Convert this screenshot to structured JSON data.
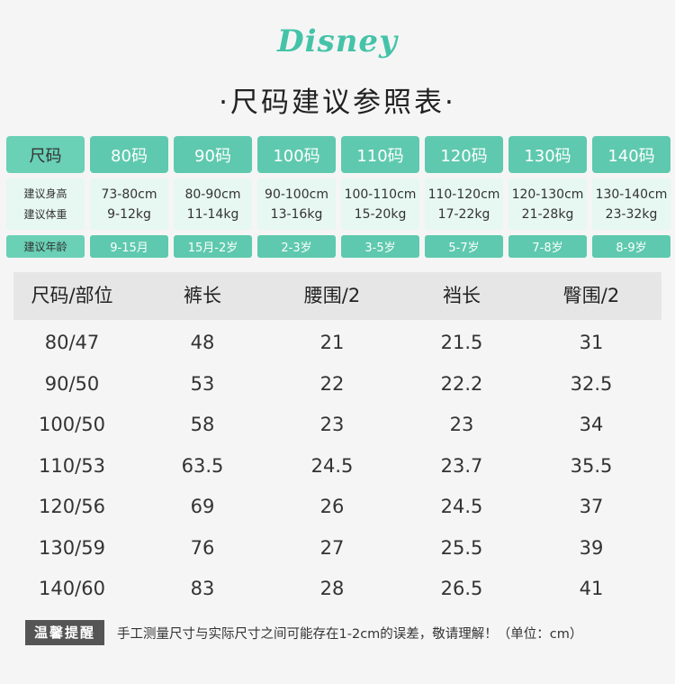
{
  "logo": "Disney",
  "title": "·尺码建议参照表·",
  "size_chart": {
    "header_label": "尺码",
    "sizes": [
      "80码",
      "90码",
      "100码",
      "110码",
      "120码",
      "130码",
      "140码"
    ],
    "height_label": "建议身高",
    "weight_label": "建议体重",
    "heights": [
      "73-80cm",
      "80-90cm",
      "90-100cm",
      "100-110cm",
      "110-120cm",
      "120-130cm",
      "130-140cm"
    ],
    "weights": [
      "9-12kg",
      "11-14kg",
      "13-16kg",
      "15-20kg",
      "17-22kg",
      "21-28kg",
      "23-32kg"
    ],
    "age_label": "建议年龄",
    "ages": [
      "9-15月",
      "15月-2岁",
      "2-3岁",
      "3-5岁",
      "5-7岁",
      "7-8岁",
      "8-9岁"
    ]
  },
  "measure_table": {
    "headers": [
      "尺码/部位",
      "裤长",
      "腰围/2",
      "裆长",
      "臀围/2"
    ],
    "rows": [
      [
        "80/47",
        "48",
        "21",
        "21.5",
        "31"
      ],
      [
        "90/50",
        "53",
        "22",
        "22.2",
        "32.5"
      ],
      [
        "100/50",
        "58",
        "23",
        "23",
        "34"
      ],
      [
        "110/53",
        "63.5",
        "24.5",
        "23.7",
        "35.5"
      ],
      [
        "120/56",
        "69",
        "26",
        "24.5",
        "37"
      ],
      [
        "130/59",
        "76",
        "27",
        "25.5",
        "39"
      ],
      [
        "140/60",
        "83",
        "28",
        "26.5",
        "41"
      ]
    ]
  },
  "note": {
    "badge": "温馨提醒",
    "text": "手工测量尺寸与实际尺寸之间可能存在1-2cm的误差，敬请理解！（单位：cm）"
  },
  "colors": {
    "accent": "#5ec9ae",
    "light": "#e7f7f2",
    "badge": "#555555"
  }
}
